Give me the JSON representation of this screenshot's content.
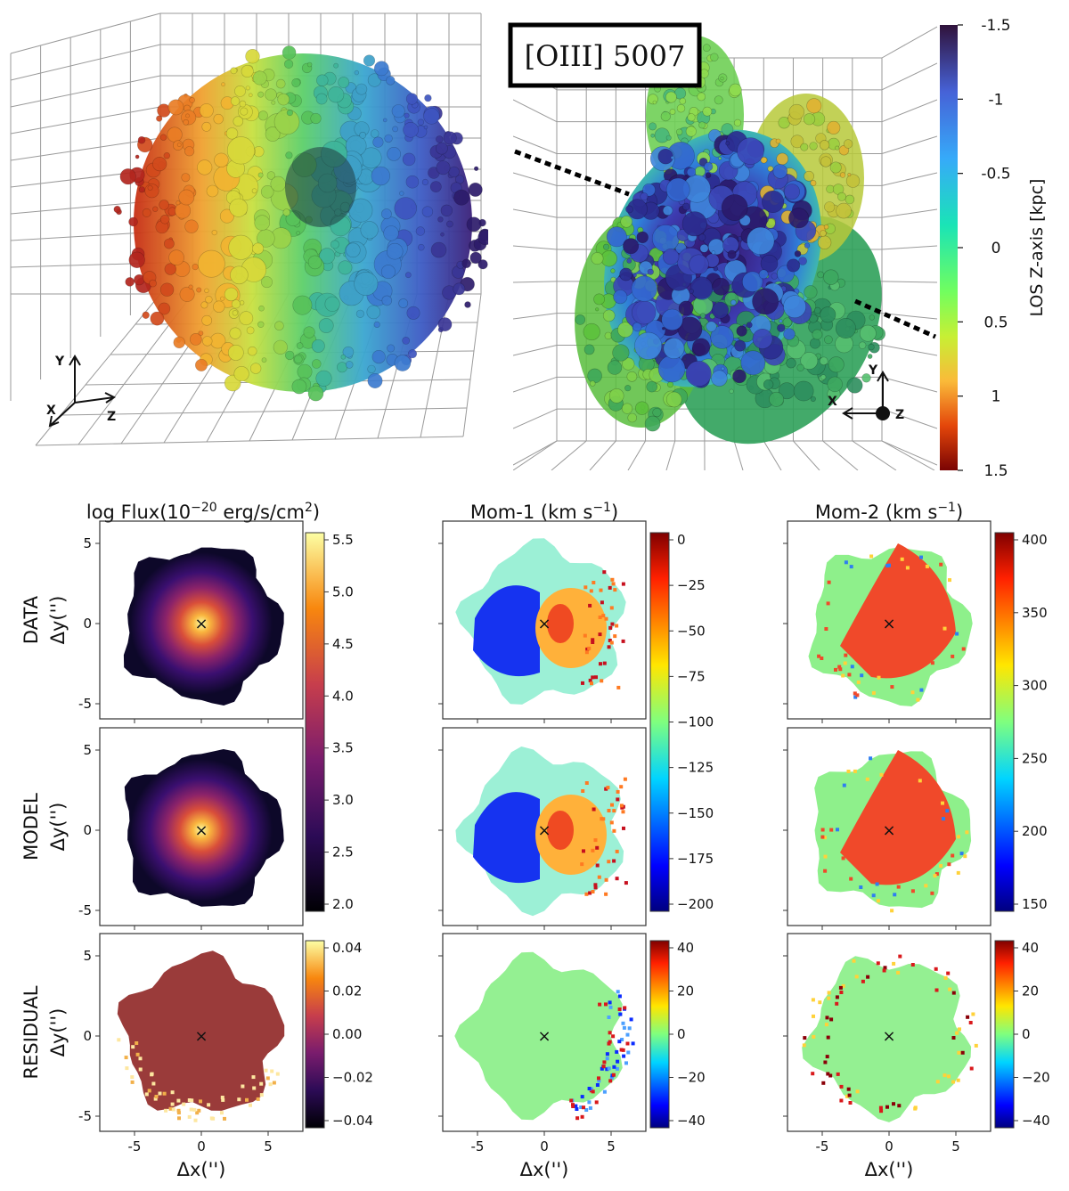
{
  "figure": {
    "oiii_label": "[OIII] 5007",
    "top_left_axes": [
      "Y",
      "X",
      "Z"
    ],
    "top_right_axes": [
      "Y",
      "X",
      "Z"
    ],
    "z_colorbar": {
      "label": "LOS Z-axis [kpc]",
      "ticks": [
        "-1.5",
        "-1",
        "-0.5",
        "0",
        "0.5",
        "1",
        "1.5"
      ]
    },
    "columns": [
      {
        "title": "log Flux(10",
        "title_sup": "−20",
        "title_tail": " erg/s/cm",
        "title_sup2": "2",
        "title_end": ")"
      },
      {
        "title": "Mom-1 (km s",
        "title_sup": "−1",
        "title_tail": ")",
        "title_sup2": "",
        "title_end": ""
      },
      {
        "title": "Mom-2 (km s",
        "title_sup": "−1",
        "title_tail": ")",
        "title_sup2": "",
        "title_end": ""
      }
    ],
    "rows": [
      "DATA",
      "MODEL",
      "RESIDUAL"
    ],
    "y_label": "Δy('')",
    "x_label": "Δx('')",
    "x_ticks": [
      "-5",
      "0",
      "5"
    ],
    "y_ticks": [
      "5",
      "0",
      "-5"
    ],
    "center_marker": "×",
    "colorbars": {
      "flux": [
        "5.5",
        "5.0",
        "4.5",
        "4.0",
        "3.5",
        "3.0",
        "2.5",
        "2.0"
      ],
      "flux_resid": [
        "0.04",
        "0.02",
        "0.00",
        "−0.02",
        "−0.04"
      ],
      "mom1": [
        "0",
        "−25",
        "−50",
        "−75",
        "−100",
        "−125",
        "−150",
        "−175",
        "−200"
      ],
      "mom2": [
        "400",
        "350",
        "300",
        "250",
        "200",
        "150"
      ],
      "resid": [
        "40",
        "20",
        "0",
        "−20",
        "−40"
      ]
    }
  }
}
